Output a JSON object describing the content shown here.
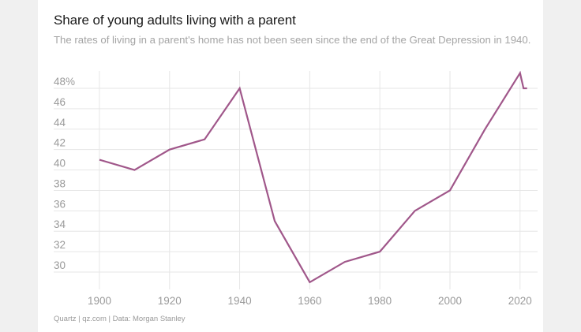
{
  "page": {
    "title": "Share of young adults living with a parent",
    "subtitle": "The rates of living in a parent's home has not been seen since the end of the Great Depression in 1940.",
    "source": "Quartz | qz.com | Data: Morgan Stanley"
  },
  "colors": {
    "line": "#a0578a",
    "grid": "#e6e6e6",
    "axis_text": "#9a9a9a",
    "background": "#ffffff"
  },
  "chart_data": {
    "type": "line",
    "title": "Share of young adults living with a parent",
    "xlabel": "",
    "ylabel": "",
    "x": [
      1900,
      1910,
      1920,
      1930,
      1940,
      1950,
      1960,
      1970,
      1980,
      1990,
      2000,
      2010,
      2020,
      2021,
      2022
    ],
    "series": [
      {
        "values": [
          41,
          40,
          42,
          43,
          48,
          35,
          29,
          31,
          32,
          36,
          38,
          44,
          49.5,
          48,
          48
        ]
      }
    ],
    "xlim": [
      1891,
      2025
    ],
    "ylim": [
      28.3,
      49.7
    ],
    "y_ticks": [
      30,
      32,
      34,
      36,
      38,
      40,
      42,
      44,
      46,
      48
    ],
    "y_tick_labels": [
      "30",
      "32",
      "34",
      "36",
      "38",
      "40",
      "42",
      "44",
      "46",
      "48%"
    ],
    "x_ticks": [
      1900,
      1920,
      1940,
      1960,
      1980,
      2000,
      2020
    ],
    "x_tick_labels": [
      "1900",
      "1920",
      "1940",
      "1960",
      "1980",
      "2000",
      "2020"
    ],
    "grid": true,
    "legend": "none"
  }
}
